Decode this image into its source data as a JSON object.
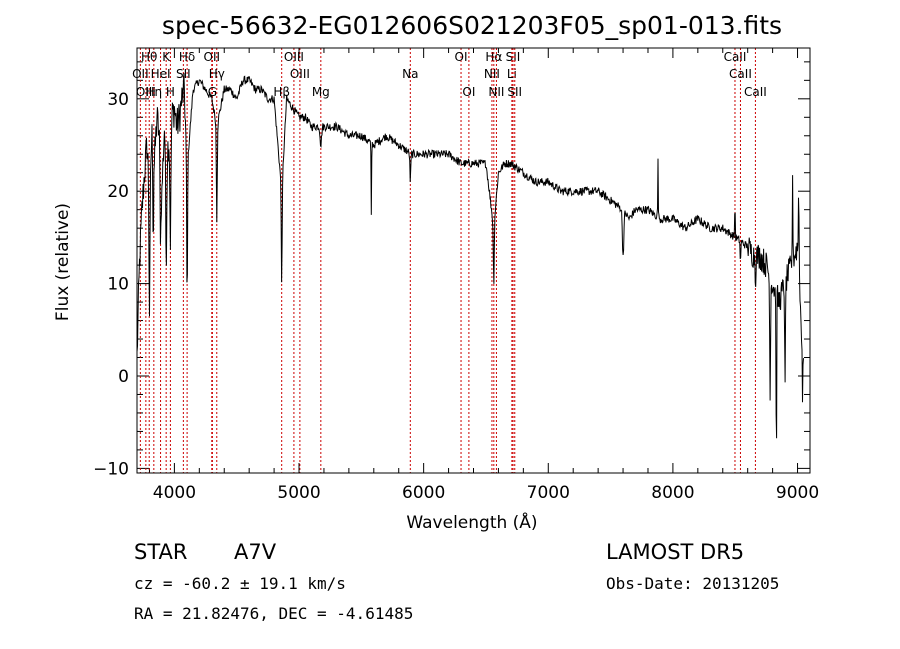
{
  "chart_data": {
    "type": "line",
    "title": "spec-56632-EG012606S021203F05_sp01-013.fits",
    "xlabel": "Wavelength (Å)",
    "ylabel": "Flux (relative)",
    "xlim": [
      3700,
      9100
    ],
    "ylim": [
      -10.5,
      35.5
    ],
    "xticks": [
      4000,
      5000,
      6000,
      7000,
      8000,
      9000
    ],
    "yticks": [
      -10,
      0,
      10,
      20,
      30
    ],
    "grid": false,
    "legend": "none",
    "line_color": "#000000",
    "marker_color": "#cc0000",
    "spectrum_anchors": {
      "x": [
        3700,
        3720,
        3740,
        3760,
        3780,
        3800,
        3820,
        3840,
        3860,
        3880,
        3900,
        3920,
        3940,
        3960,
        3980,
        4000,
        4020,
        4040,
        4060,
        4080,
        4100,
        4150,
        4200,
        4250,
        4300,
        4340,
        4400,
        4450,
        4500,
        4550,
        4600,
        4650,
        4700,
        4750,
        4800,
        4861,
        4900,
        4950,
        5000,
        5050,
        5100,
        5150,
        5200,
        5300,
        5400,
        5500,
        5600,
        5700,
        5800,
        5900,
        6000,
        6100,
        6200,
        6300,
        6400,
        6500,
        6563,
        6600,
        6650,
        6700,
        6800,
        6900,
        7000,
        7100,
        7200,
        7300,
        7400,
        7500,
        7600,
        7650,
        7700,
        7800,
        7900,
        8000,
        8100,
        8200,
        8300,
        8400,
        8500,
        8600,
        8650,
        8700,
        8750,
        8800,
        8850,
        8900,
        8950,
        9000,
        9050
      ],
      "y": [
        2,
        12,
        18,
        22,
        25,
        21,
        26,
        23,
        28,
        26,
        20,
        27,
        24,
        26,
        28,
        29,
        27,
        28,
        30,
        31,
        22,
        31,
        32,
        31,
        30,
        27,
        31,
        31,
        30,
        32,
        32,
        31,
        31,
        30,
        30,
        20,
        30,
        29,
        28,
        28,
        27,
        27,
        27,
        27,
        26,
        26,
        25,
        26,
        25,
        24,
        24,
        24,
        24,
        23,
        23,
        23,
        16,
        22,
        23,
        23,
        22,
        21,
        21,
        20,
        20,
        20,
        20,
        19,
        18,
        17,
        18,
        18,
        17,
        17,
        16,
        17,
        16,
        16,
        15,
        14,
        13,
        13,
        12,
        10,
        8,
        10,
        12,
        14,
        0
      ]
    },
    "spectrum_features": [
      {
        "x": 3800,
        "dy": -14,
        "w": 6
      },
      {
        "x": 3830,
        "dy": -10,
        "w": 4
      },
      {
        "x": 3889,
        "dy": -8,
        "w": 6
      },
      {
        "x": 3934,
        "dy": -12,
        "w": 6
      },
      {
        "x": 3968,
        "dy": -12,
        "w": 6
      },
      {
        "x": 4102,
        "dy": -14,
        "w": 5
      },
      {
        "x": 4340,
        "dy": -10,
        "w": 5
      },
      {
        "x": 4861,
        "dy": -10,
        "w": 5
      },
      {
        "x": 5175,
        "dy": -2,
        "w": 8
      },
      {
        "x": 5580,
        "dy": -8,
        "w": 3
      },
      {
        "x": 5893,
        "dy": -3,
        "w": 5
      },
      {
        "x": 6563,
        "dy": -6,
        "w": 5
      },
      {
        "x": 7600,
        "dy": -5,
        "w": 8
      },
      {
        "x": 7880,
        "dy": 6,
        "w": 3
      },
      {
        "x": 8498,
        "dy": 4,
        "w": 3
      },
      {
        "x": 8542,
        "dy": -3,
        "w": 3
      },
      {
        "x": 8662,
        "dy": -3,
        "w": 3
      },
      {
        "x": 8780,
        "dy": -12,
        "w": 5
      },
      {
        "x": 8830,
        "dy": -22,
        "w": 3
      },
      {
        "x": 8900,
        "dy": -12,
        "w": 4
      },
      {
        "x": 8960,
        "dy": 8,
        "w": 4
      },
      {
        "x": 9010,
        "dy": 10,
        "w": 4
      },
      {
        "x": 9040,
        "dy": -5,
        "w": 3
      }
    ],
    "lines": [
      {
        "label": "Hθ",
        "x": 3798,
        "row": 1
      },
      {
        "label": "K",
        "x": 3934,
        "row": 1
      },
      {
        "label": "Hδ",
        "x": 4102,
        "row": 1
      },
      {
        "label": "OII",
        "x": 4300,
        "row": 1
      },
      {
        "label": "OIII",
        "x": 4959,
        "row": 1
      },
      {
        "label": "OI",
        "x": 6300,
        "row": 1
      },
      {
        "label": "Hα",
        "x": 6563,
        "row": 1
      },
      {
        "label": "SII",
        "x": 6717,
        "row": 1
      },
      {
        "label": "CaII",
        "x": 8498,
        "row": 1
      },
      {
        "label": "OII",
        "x": 3727,
        "row": 2
      },
      {
        "label": "HeI",
        "x": 3889,
        "row": 2
      },
      {
        "label": "SII",
        "x": 4072,
        "row": 2
      },
      {
        "label": "Hγ",
        "x": 4340,
        "row": 2
      },
      {
        "label": "OIII",
        "x": 5007,
        "row": 2
      },
      {
        "label": "Na",
        "x": 5893,
        "row": 2
      },
      {
        "label": "NII",
        "x": 6548,
        "row": 2
      },
      {
        "label": "Li",
        "x": 6708,
        "row": 2
      },
      {
        "label": "CaII",
        "x": 8542,
        "row": 2
      },
      {
        "label": "OIII",
        "x": 3771,
        "row": 3
      },
      {
        "label": "Hη",
        "x": 3835,
        "row": 3
      },
      {
        "label": "H",
        "x": 3968,
        "row": 3
      },
      {
        "label": "G",
        "x": 4305,
        "row": 3
      },
      {
        "label": "Hβ",
        "x": 4861,
        "row": 3
      },
      {
        "label": "Mg",
        "x": 5175,
        "row": 3
      },
      {
        "label": "OI",
        "x": 6363,
        "row": 3
      },
      {
        "label": "NII",
        "x": 6584,
        "row": 3
      },
      {
        "label": "SII",
        "x": 6731,
        "row": 3
      },
      {
        "label": "CaII",
        "x": 8662,
        "row": 3
      }
    ]
  },
  "info": {
    "object_type": "STAR",
    "subclass": "A7V",
    "survey": "LAMOST DR5",
    "cz": "cz = -60.2 ± 19.1 km/s",
    "obs_date": "Obs-Date: 20131205",
    "coords": "RA =  21.82476, DEC =  -4.61485"
  }
}
